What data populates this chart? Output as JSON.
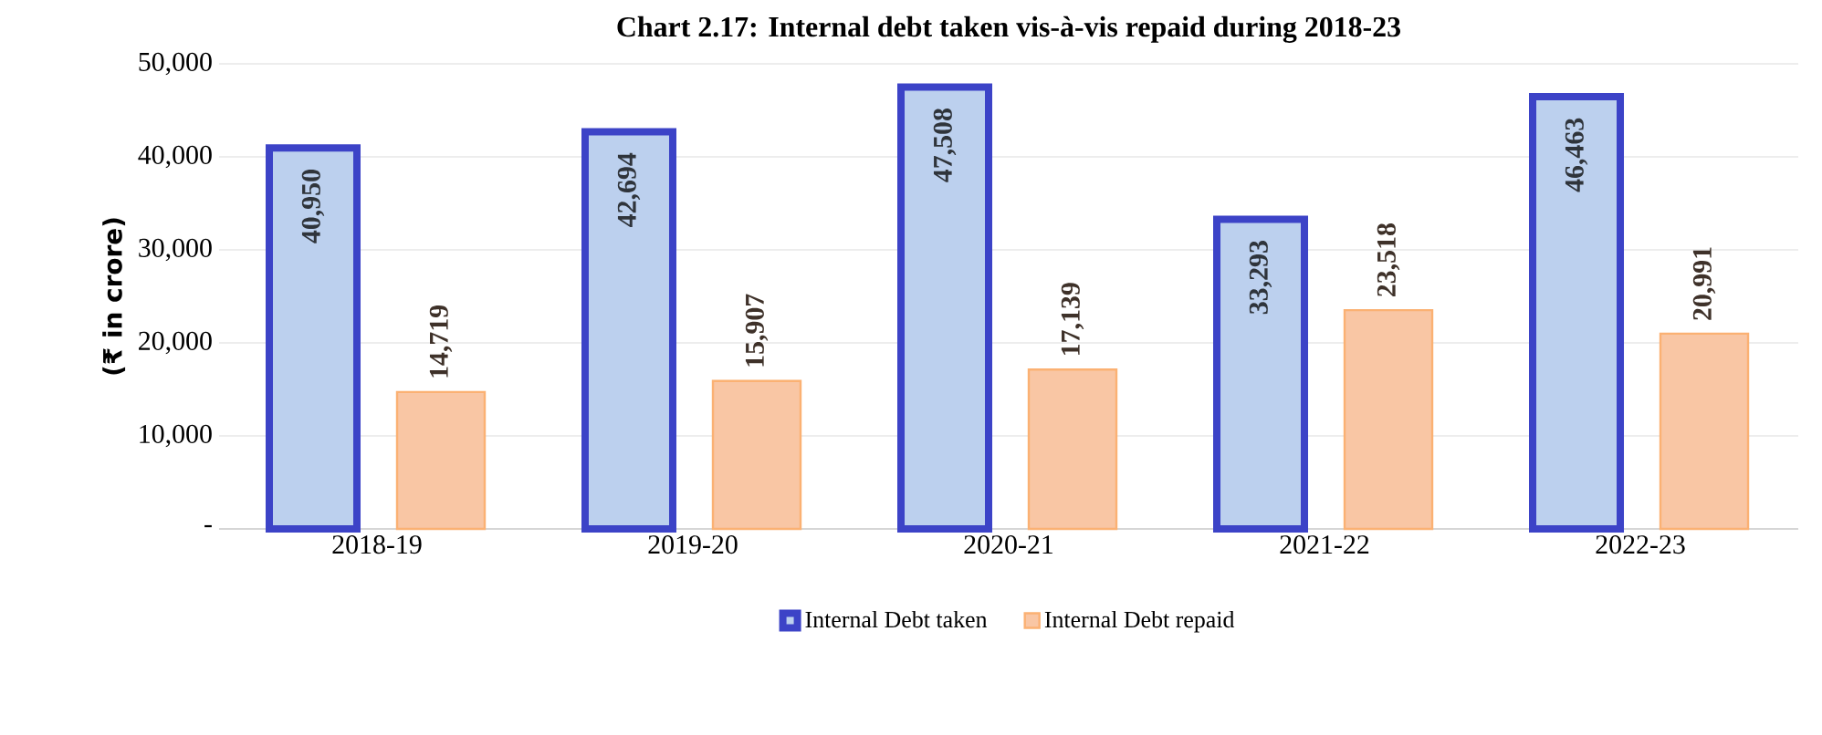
{
  "chart_data": {
    "type": "bar",
    "title": "Chart 2.17: Internal debt taken vis-à-vis repaid during 2018-23",
    "ylabel": "(₹ in crore)",
    "categories": [
      "2018-19",
      "2019-20",
      "2020-21",
      "2021-22",
      "2022-23"
    ],
    "series": [
      {
        "name": "Internal Debt taken",
        "color": "#bcd0ee",
        "values": [
          40950,
          42694,
          47508,
          33293,
          46463
        ],
        "value_labels": [
          "40,950",
          "42,694",
          "47,508",
          "33,293",
          "46,463"
        ]
      },
      {
        "name": "Internal Debt repaid",
        "color": "#f9c6a4",
        "values": [
          14719,
          15907,
          17139,
          23518,
          20991
        ],
        "value_labels": [
          "14,719",
          "15,907",
          "17,139",
          "23,518",
          "20,991"
        ]
      }
    ],
    "ylim": [
      0,
      50000
    ],
    "yticks": [
      {
        "value": 0,
        "label": "-"
      },
      {
        "value": 10000,
        "label": "10,000"
      },
      {
        "value": 20000,
        "label": "20,000"
      },
      {
        "value": 30000,
        "label": "30,000"
      },
      {
        "value": 40000,
        "label": "40,000"
      },
      {
        "value": 50000,
        "label": "50,000"
      }
    ],
    "grid": "y",
    "legend": "bottom"
  }
}
